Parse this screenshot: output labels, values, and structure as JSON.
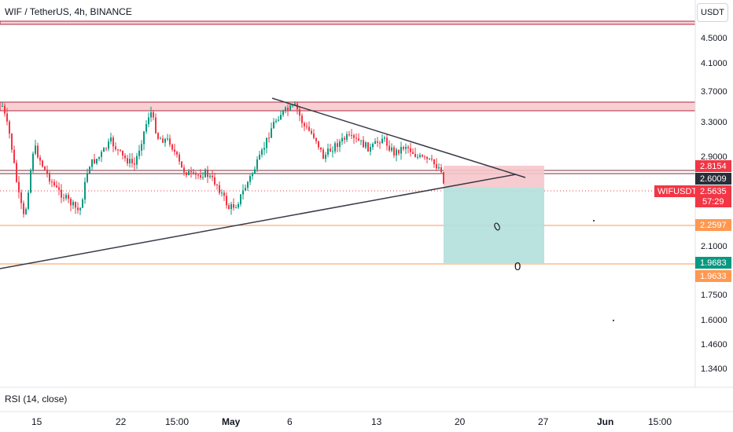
{
  "header": {
    "title": "WIF / TetherUS, 4h, BINANCE",
    "currency_button": "USDT"
  },
  "price_axis": {
    "ticks": [
      "4.5000",
      "4.1000",
      "3.7000",
      "3.3000",
      "2.9000",
      "2.1000",
      "1.7500",
      "1.6000",
      "1.4600",
      "1.3400"
    ],
    "badges": [
      {
        "label": "2.8154",
        "color": "#f23645",
        "price": 2.8154
      },
      {
        "label": "2.6009",
        "color": "#2a2e39",
        "price": 2.6009
      },
      {
        "label": "2.5635",
        "color": "#f23645",
        "price": 2.5635
      },
      {
        "label": "57:29",
        "color": "#f23645"
      },
      {
        "label": "2.2597",
        "color": "#ff9850",
        "price": 2.2597
      },
      {
        "label": "1.9683",
        "color": "#089981",
        "price": 1.9683
      },
      {
        "label": "1.9633",
        "color": "#ff9850",
        "price": 1.9633
      }
    ],
    "symbol_tag": "WIFUSDT"
  },
  "time_axis": {
    "ticks": [
      "15",
      "22",
      "15:00",
      "May",
      "6",
      "13",
      "20",
      "27",
      "Jun",
      "15:00"
    ]
  },
  "indicator_pane": {
    "label": "RSI (14, close)"
  },
  "drawings": {
    "resistance_zone_color": "#f8d0d4",
    "short_stop_zone_color": "#f5c6cb",
    "short_target_zone_color": "#b2dfdb",
    "horizontal_level_color": "#ff9850",
    "trendline_color": "#363a45",
    "handwritten_marks": [
      "0",
      "0"
    ]
  },
  "chart_data": {
    "type": "candlestick",
    "symbol": "WIF / TetherUS",
    "interval": "4h",
    "exchange": "BINANCE",
    "last_price": 2.5635,
    "countdown": "57:29",
    "levels": [
      2.8154,
      2.6009,
      2.2597,
      1.9683,
      1.9633
    ],
    "price_ticks": [
      4.5,
      4.1,
      3.7,
      3.3,
      2.9,
      2.1,
      1.75,
      1.6,
      1.46,
      1.34
    ],
    "time_labels": [
      "15",
      "22",
      "15:00",
      "May",
      "6",
      "13",
      "20",
      "27",
      "Jun",
      "15:00"
    ],
    "up_color": "#089981",
    "down_color": "#f23645",
    "grid": false
  }
}
